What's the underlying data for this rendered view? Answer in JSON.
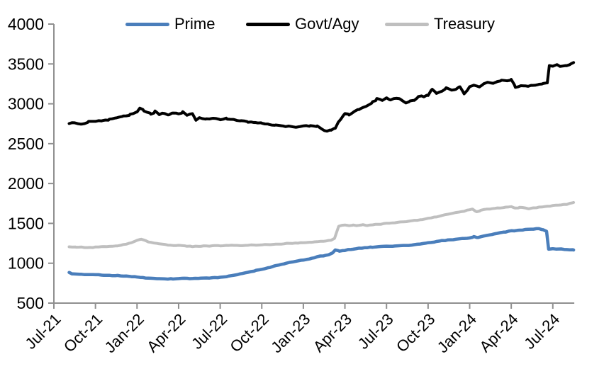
{
  "chart_data": {
    "type": "line",
    "title": "",
    "xlabel": "",
    "ylabel": "",
    "x_unit": "months since Jul-2021",
    "grid": false,
    "legend_position": "top",
    "axis_color": "#8f8f8f",
    "text_color": "#000000",
    "ylim": [
      500,
      4000
    ],
    "y_ticks": [
      500,
      1000,
      1500,
      2000,
      2500,
      3000,
      3500,
      4000
    ],
    "x_tick_months": [
      0,
      3,
      6,
      9,
      12,
      15,
      18,
      21,
      24,
      27,
      30,
      33,
      36
    ],
    "x_tick_labels": [
      "Jul-21",
      "Oct-21",
      "Jan-22",
      "Apr-22",
      "Jul-22",
      "Oct-22",
      "Jan-23",
      "Apr-23",
      "Jul-23",
      "Oct-23",
      "Jan-24",
      "Apr-24",
      "Jul-24"
    ],
    "x_axis_end_month": 37.55,
    "series": [
      {
        "name": "Prime",
        "color": "#4a7ebb",
        "stroke_width": 4.5,
        "jitter": 5,
        "points": [
          [
            1.1,
            885
          ],
          [
            1.4,
            866
          ],
          [
            2,
            860
          ],
          [
            2.6,
            856
          ],
          [
            3,
            854
          ],
          [
            3.6,
            850
          ],
          [
            4,
            849
          ],
          [
            4.6,
            845
          ],
          [
            5,
            840
          ],
          [
            5.6,
            832
          ],
          [
            6,
            826
          ],
          [
            6.6,
            816
          ],
          [
            7,
            810
          ],
          [
            7.6,
            806
          ],
          [
            8,
            804
          ],
          [
            8.6,
            803
          ],
          [
            9,
            806
          ],
          [
            9.4,
            810
          ],
          [
            9.8,
            806
          ],
          [
            10.2,
            810
          ],
          [
            10.6,
            813
          ],
          [
            11,
            815
          ],
          [
            11.6,
            818
          ],
          [
            12,
            822
          ],
          [
            12.6,
            836
          ],
          [
            13,
            852
          ],
          [
            13.6,
            870
          ],
          [
            14,
            886
          ],
          [
            14.6,
            908
          ],
          [
            15,
            924
          ],
          [
            15.6,
            948
          ],
          [
            16,
            970
          ],
          [
            16.6,
            992
          ],
          [
            17,
            1012
          ],
          [
            17.6,
            1030
          ],
          [
            18,
            1042
          ],
          [
            18.6,
            1062
          ],
          [
            19,
            1082
          ],
          [
            19.6,
            1100
          ],
          [
            19.9,
            1112
          ],
          [
            20.1,
            1130
          ],
          [
            20.3,
            1168
          ],
          [
            20.6,
            1152
          ],
          [
            21,
            1162
          ],
          [
            21.6,
            1178
          ],
          [
            22,
            1186
          ],
          [
            22.6,
            1196
          ],
          [
            23,
            1202
          ],
          [
            23.6,
            1208
          ],
          [
            24,
            1212
          ],
          [
            24.6,
            1216
          ],
          [
            25,
            1220
          ],
          [
            25.6,
            1224
          ],
          [
            26,
            1232
          ],
          [
            26.6,
            1246
          ],
          [
            27,
            1258
          ],
          [
            27.6,
            1272
          ],
          [
            28,
            1282
          ],
          [
            28.6,
            1294
          ],
          [
            29,
            1302
          ],
          [
            29.6,
            1312
          ],
          [
            30,
            1318
          ],
          [
            30.3,
            1332
          ],
          [
            30.6,
            1322
          ],
          [
            31,
            1342
          ],
          [
            31.6,
            1360
          ],
          [
            32,
            1375
          ],
          [
            32.6,
            1394
          ],
          [
            33,
            1406
          ],
          [
            33.6,
            1414
          ],
          [
            34,
            1420
          ],
          [
            34.6,
            1428
          ],
          [
            35,
            1432
          ],
          [
            35.3,
            1418
          ],
          [
            35.55,
            1402
          ],
          [
            35.7,
            1178
          ],
          [
            36,
            1182
          ],
          [
            36.6,
            1178
          ],
          [
            37,
            1172
          ],
          [
            37.5,
            1166
          ]
        ]
      },
      {
        "name": "Govt/Agy",
        "color": "#000000",
        "stroke_width": 4,
        "jitter": 12,
        "points": [
          [
            1.1,
            2752
          ],
          [
            1.5,
            2762
          ],
          [
            2,
            2748
          ],
          [
            2.5,
            2772
          ],
          [
            3,
            2780
          ],
          [
            3.5,
            2790
          ],
          [
            4,
            2802
          ],
          [
            4.5,
            2822
          ],
          [
            5,
            2848
          ],
          [
            5.5,
            2868
          ],
          [
            6,
            2898
          ],
          [
            6.2,
            2942
          ],
          [
            6.5,
            2912
          ],
          [
            7,
            2872
          ],
          [
            7.3,
            2902
          ],
          [
            7.6,
            2862
          ],
          [
            8,
            2882
          ],
          [
            8.3,
            2858
          ],
          [
            8.6,
            2888
          ],
          [
            9,
            2872
          ],
          [
            9.3,
            2896
          ],
          [
            9.6,
            2852
          ],
          [
            10,
            2878
          ],
          [
            10.25,
            2798
          ],
          [
            10.5,
            2822
          ],
          [
            11,
            2812
          ],
          [
            11.5,
            2818
          ],
          [
            12,
            2806
          ],
          [
            12.5,
            2812
          ],
          [
            13,
            2796
          ],
          [
            13.5,
            2782
          ],
          [
            14,
            2776
          ],
          [
            14.5,
            2766
          ],
          [
            15,
            2756
          ],
          [
            15.5,
            2746
          ],
          [
            16,
            2732
          ],
          [
            16.5,
            2722
          ],
          [
            17,
            2712
          ],
          [
            17.5,
            2706
          ],
          [
            18,
            2722
          ],
          [
            18.5,
            2726
          ],
          [
            19,
            2712
          ],
          [
            19.3,
            2682
          ],
          [
            19.7,
            2656
          ],
          [
            20,
            2668
          ],
          [
            20.3,
            2698
          ],
          [
            20.7,
            2812
          ],
          [
            21,
            2878
          ],
          [
            21.3,
            2862
          ],
          [
            21.7,
            2908
          ],
          [
            22,
            2922
          ],
          [
            22.3,
            2952
          ],
          [
            22.7,
            2996
          ],
          [
            23,
            3022
          ],
          [
            23.3,
            3058
          ],
          [
            23.7,
            3048
          ],
          [
            24,
            3066
          ],
          [
            24.3,
            3052
          ],
          [
            24.7,
            3072
          ],
          [
            25,
            3062
          ],
          [
            25.4,
            3012
          ],
          [
            25.7,
            3032
          ],
          [
            26,
            3052
          ],
          [
            26.3,
            3088
          ],
          [
            26.7,
            3098
          ],
          [
            27,
            3106
          ],
          [
            27.3,
            3188
          ],
          [
            27.6,
            3132
          ],
          [
            28,
            3162
          ],
          [
            28.3,
            3196
          ],
          [
            28.7,
            3172
          ],
          [
            29,
            3182
          ],
          [
            29.3,
            3222
          ],
          [
            29.6,
            3122
          ],
          [
            30,
            3212
          ],
          [
            30.3,
            3232
          ],
          [
            30.7,
            3216
          ],
          [
            31,
            3252
          ],
          [
            31.3,
            3272
          ],
          [
            31.7,
            3256
          ],
          [
            32,
            3272
          ],
          [
            32.3,
            3296
          ],
          [
            32.7,
            3282
          ],
          [
            33,
            3302
          ],
          [
            33.3,
            3212
          ],
          [
            33.7,
            3226
          ],
          [
            34,
            3222
          ],
          [
            34.5,
            3232
          ],
          [
            35,
            3238
          ],
          [
            35.3,
            3252
          ],
          [
            35.6,
            3262
          ],
          [
            35.75,
            3482
          ],
          [
            36,
            3472
          ],
          [
            36.3,
            3482
          ],
          [
            36.7,
            3466
          ],
          [
            37,
            3482
          ],
          [
            37.3,
            3492
          ],
          [
            37.5,
            3518
          ]
        ]
      },
      {
        "name": "Treasury",
        "color": "#bfbfbf",
        "stroke_width": 4,
        "jitter": 5,
        "points": [
          [
            1.1,
            1206
          ],
          [
            1.6,
            1200
          ],
          [
            2,
            1203
          ],
          [
            2.6,
            1198
          ],
          [
            3,
            1201
          ],
          [
            3.6,
            1206
          ],
          [
            4,
            1211
          ],
          [
            4.6,
            1219
          ],
          [
            5,
            1232
          ],
          [
            5.6,
            1258
          ],
          [
            6,
            1288
          ],
          [
            6.3,
            1302
          ],
          [
            6.6,
            1282
          ],
          [
            7,
            1262
          ],
          [
            7.6,
            1244
          ],
          [
            8,
            1232
          ],
          [
            8.6,
            1222
          ],
          [
            9,
            1226
          ],
          [
            9.6,
            1215
          ],
          [
            10,
            1211
          ],
          [
            10.6,
            1213
          ],
          [
            11,
            1216
          ],
          [
            11.6,
            1219
          ],
          [
            12,
            1221
          ],
          [
            12.6,
            1223
          ],
          [
            13,
            1226
          ],
          [
            13.6,
            1222
          ],
          [
            14,
            1229
          ],
          [
            14.6,
            1226
          ],
          [
            15,
            1229
          ],
          [
            15.6,
            1233
          ],
          [
            16,
            1239
          ],
          [
            16.6,
            1243
          ],
          [
            17,
            1249
          ],
          [
            17.6,
            1253
          ],
          [
            18,
            1256
          ],
          [
            18.6,
            1263
          ],
          [
            19,
            1271
          ],
          [
            19.6,
            1279
          ],
          [
            20,
            1288
          ],
          [
            20.25,
            1310
          ],
          [
            20.55,
            1462
          ],
          [
            20.8,
            1476
          ],
          [
            21,
            1481
          ],
          [
            21.3,
            1471
          ],
          [
            21.6,
            1479
          ],
          [
            22,
            1473
          ],
          [
            22.3,
            1481
          ],
          [
            22.6,
            1476
          ],
          [
            23,
            1483
          ],
          [
            23.6,
            1491
          ],
          [
            24,
            1501
          ],
          [
            24.6,
            1506
          ],
          [
            25,
            1516
          ],
          [
            25.6,
            1526
          ],
          [
            26,
            1536
          ],
          [
            26.6,
            1549
          ],
          [
            27,
            1563
          ],
          [
            27.6,
            1581
          ],
          [
            28,
            1599
          ],
          [
            28.6,
            1619
          ],
          [
            29,
            1636
          ],
          [
            29.6,
            1652
          ],
          [
            30,
            1672
          ],
          [
            30.2,
            1682
          ],
          [
            30.5,
            1646
          ],
          [
            30.8,
            1661
          ],
          [
            31,
            1671
          ],
          [
            31.6,
            1683
          ],
          [
            32,
            1691
          ],
          [
            32.6,
            1701
          ],
          [
            33,
            1711
          ],
          [
            33.3,
            1691
          ],
          [
            33.6,
            1701
          ],
          [
            34,
            1696
          ],
          [
            34.3,
            1683
          ],
          [
            34.6,
            1696
          ],
          [
            35,
            1701
          ],
          [
            35.6,
            1712
          ],
          [
            36,
            1722
          ],
          [
            36.6,
            1734
          ],
          [
            37,
            1742
          ],
          [
            37.5,
            1762
          ]
        ]
      }
    ]
  }
}
